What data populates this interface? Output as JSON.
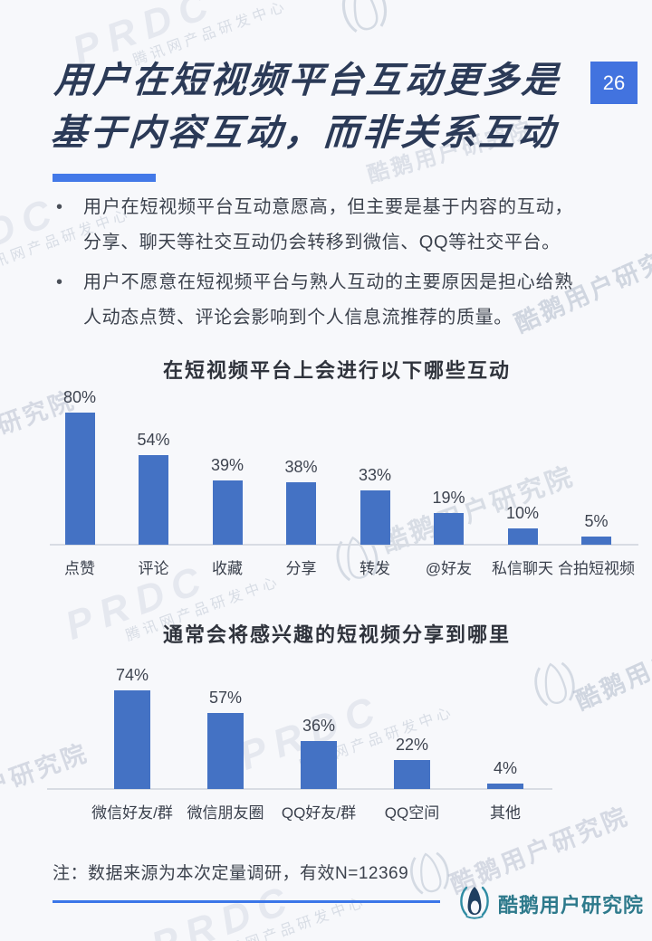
{
  "header": {
    "page_number": "26",
    "title_line1": "用户在短视频平台互动更多是",
    "title_line2": "基于内容互动，而非关系互动"
  },
  "bullets": [
    "用户在短视频平台互动意愿高，但主要是基于内容的互动，分享、聊天等社交互动仍会转移到微信、QQ等社交平台。",
    "用户不愿意在短视频平台与熟人互动的主要原因是担心给熟人动态点赞、评论会影响到个人信息流推荐的质量。"
  ],
  "chart_data": [
    {
      "type": "bar",
      "title": "在短视频平台上会进行以下哪些互动",
      "categories": [
        "点赞",
        "评论",
        "收藏",
        "分享",
        "转发",
        "@好友",
        "私信聊天",
        "合拍短视频"
      ],
      "values": [
        80,
        54,
        39,
        38,
        33,
        19,
        10,
        5
      ],
      "unit": "%",
      "ylim": [
        0,
        100
      ],
      "bar_color": "#4472c4",
      "grid": false,
      "value_labels_shown": true
    },
    {
      "type": "bar",
      "title": "通常会将感兴趣的短视频分享到哪里",
      "categories": [
        "微信好友/群",
        "微信朋友圈",
        "QQ好友/群",
        "QQ空间",
        "其他"
      ],
      "values": [
        74,
        57,
        36,
        22,
        4
      ],
      "unit": "%",
      "ylim": [
        0,
        100
      ],
      "bar_color": "#4472c4",
      "grid": false,
      "value_labels_shown": true
    }
  ],
  "footer": {
    "note": "注：数据来源为本次定量调研，有效N=12369",
    "logo_text": "酷鹅用户研究院"
  },
  "watermarks": {
    "prdc": "PRDC",
    "prdc_sub": "腾讯网产品研发中心",
    "brand": "酷鹅用户研究院"
  },
  "colors": {
    "background": "#f7f8fb",
    "accent_blue": "#4379e8",
    "badge_blue": "#4273df",
    "bar_blue": "#4472c4",
    "title_navy": "#2b3a57",
    "logo_teal": "#2e7a8c",
    "axis_gray": "#d8dce3"
  }
}
